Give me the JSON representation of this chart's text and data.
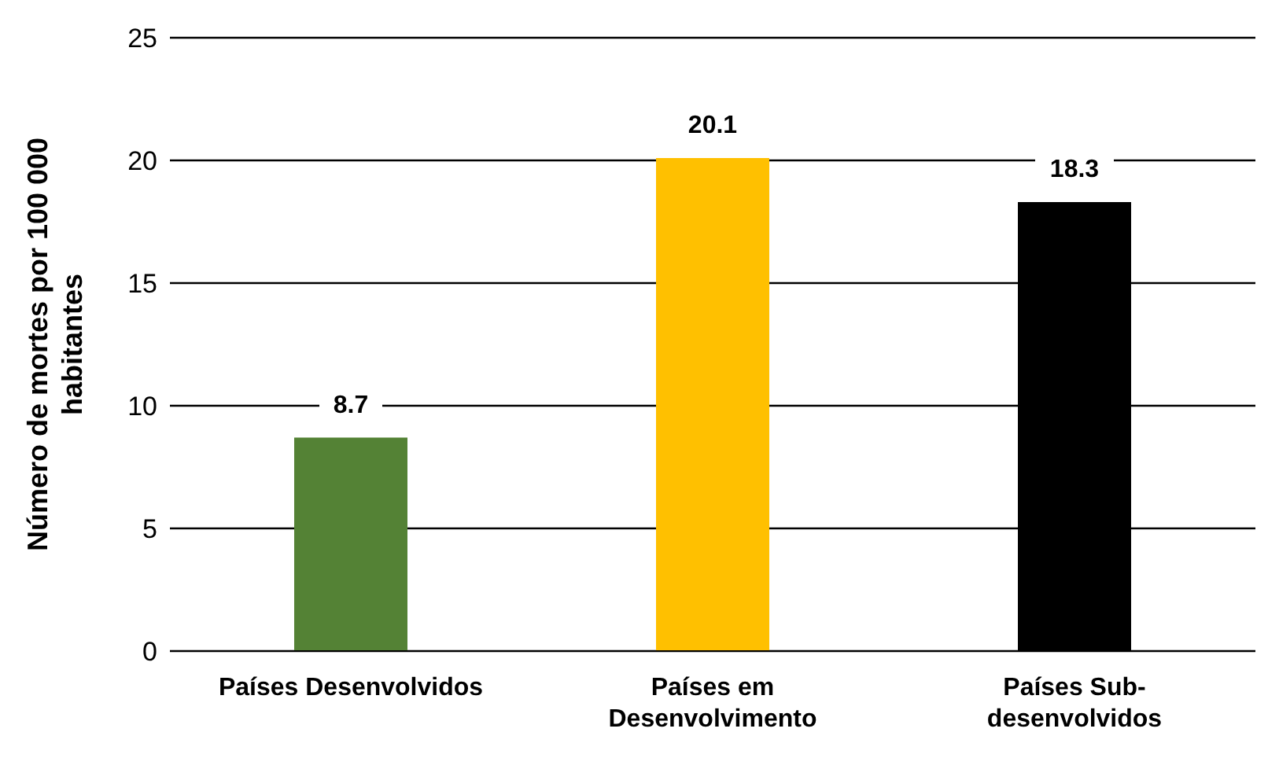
{
  "chart_data": {
    "type": "bar",
    "ylabel": "Número de mortes por 100 000 habitantes",
    "categories": [
      "Países Desenvolvidos",
      "Países em Desenvolvimento",
      "Países Sub-desenvolvidos"
    ],
    "values": [
      8.7,
      20.1,
      18.3
    ],
    "colors": [
      "#548235",
      "#ffc000",
      "#000000"
    ],
    "ylim": [
      0,
      25
    ],
    "yticks": [
      0,
      5,
      10,
      15,
      20,
      25
    ],
    "grid": "y",
    "data_labels": true
  }
}
